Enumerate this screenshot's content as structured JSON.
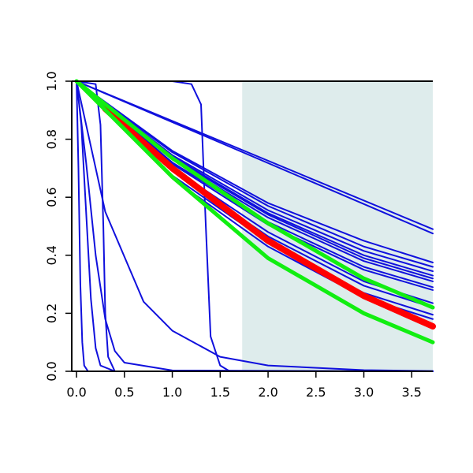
{
  "chart_data": {
    "type": "line",
    "title": "",
    "xlabel": "",
    "ylabel": "",
    "xlim": [
      -0.05,
      3.72
    ],
    "ylim": [
      0,
      1
    ],
    "grid": false,
    "legend": "none",
    "x_ticks": [
      {
        "value": 0.0,
        "label": "0.0"
      },
      {
        "value": 0.5,
        "label": "0.5"
      },
      {
        "value": 1.0,
        "label": "1.0"
      },
      {
        "value": 1.5,
        "label": "1.5"
      },
      {
        "value": 2.0,
        "label": "2.0"
      },
      {
        "value": 2.5,
        "label": "2.5"
      },
      {
        "value": 3.0,
        "label": "3.0"
      },
      {
        "value": 3.5,
        "label": "3.5"
      }
    ],
    "y_ticks": [
      {
        "value": 0.0,
        "label": "0.0"
      },
      {
        "value": 0.2,
        "label": "0.2"
      },
      {
        "value": 0.4,
        "label": "0.4"
      },
      {
        "value": 0.6,
        "label": "0.6"
      },
      {
        "value": 0.8,
        "label": "0.8"
      },
      {
        "value": 1.0,
        "label": "1.0"
      }
    ],
    "shaded_region": {
      "x_start": 1.73,
      "x_end": 3.72,
      "y_start": 0,
      "y_end": 1,
      "color": "#deecec"
    },
    "colors": {
      "blue": "#1010dd",
      "red": "#ff0000",
      "green": "#11ee11",
      "axis": "#000000"
    },
    "series": [
      {
        "color": "#1010dd",
        "width": 2,
        "x": [
          0,
          3.72
        ],
        "y": [
          1.0,
          0.49
        ]
      },
      {
        "color": "#1010dd",
        "width": 2,
        "x": [
          0,
          3.72
        ],
        "y": [
          1.0,
          0.475
        ]
      },
      {
        "color": "#1010dd",
        "width": 2,
        "x": [
          0,
          1.0,
          2.0,
          3.0,
          3.72
        ],
        "y": [
          1.0,
          0.76,
          0.58,
          0.45,
          0.375
        ]
      },
      {
        "color": "#1010dd",
        "width": 2,
        "x": [
          0,
          1.0,
          2.0,
          3.0,
          3.72
        ],
        "y": [
          1.0,
          0.755,
          0.57,
          0.43,
          0.36
        ]
      },
      {
        "color": "#1010dd",
        "width": 2,
        "x": [
          0,
          1.0,
          2.0,
          3.0,
          3.72
        ],
        "y": [
          1.0,
          0.745,
          0.555,
          0.415,
          0.345
        ]
      },
      {
        "color": "#1010dd",
        "width": 2,
        "x": [
          0,
          1.0,
          2.0,
          3.0,
          3.72
        ],
        "y": [
          1.0,
          0.74,
          0.545,
          0.4,
          0.33
        ]
      },
      {
        "color": "#1010dd",
        "width": 2,
        "x": [
          0,
          1.0,
          2.0,
          3.0,
          3.72
        ],
        "y": [
          1.0,
          0.735,
          0.54,
          0.39,
          0.32
        ]
      },
      {
        "color": "#1010dd",
        "width": 2,
        "x": [
          0,
          1.0,
          2.0,
          3.0,
          3.72
        ],
        "y": [
          1.0,
          0.73,
          0.53,
          0.38,
          0.31
        ]
      },
      {
        "color": "#1010dd",
        "width": 2,
        "x": [
          0,
          1.0,
          2.0,
          3.0,
          3.72
        ],
        "y": [
          1.0,
          0.72,
          0.515,
          0.36,
          0.29
        ]
      },
      {
        "color": "#1010dd",
        "width": 2,
        "x": [
          0,
          1.0,
          2.0,
          3.0,
          3.72
        ],
        "y": [
          1.0,
          0.715,
          0.505,
          0.35,
          0.28
        ]
      },
      {
        "color": "#1010dd",
        "width": 2,
        "x": [
          0,
          1.0,
          2.0,
          3.0,
          3.72
        ],
        "y": [
          1.0,
          0.7,
          0.48,
          0.31,
          0.235
        ]
      },
      {
        "color": "#1010dd",
        "width": 2,
        "x": [
          0,
          1.0,
          2.0,
          3.0,
          3.72
        ],
        "y": [
          1.0,
          0.69,
          0.465,
          0.295,
          0.22
        ]
      },
      {
        "color": "#1010dd",
        "width": 2,
        "x": [
          0,
          1.0,
          2.0,
          3.0,
          3.72
        ],
        "y": [
          1.0,
          0.675,
          0.445,
          0.27,
          0.195
        ]
      },
      {
        "color": "#1010dd",
        "width": 2,
        "x": [
          0,
          1.0,
          2.0,
          3.0,
          3.72
        ],
        "y": [
          1.0,
          0.665,
          0.43,
          0.255,
          0.18
        ]
      },
      {
        "color": "#1010dd",
        "width": 2,
        "x": [
          0,
          0.3,
          0.7,
          1.0,
          1.5,
          2.0,
          3.0,
          3.72
        ],
        "y": [
          1.0,
          0.55,
          0.24,
          0.14,
          0.05,
          0.02,
          0.004,
          0.001
        ]
      },
      {
        "color": "#1010dd",
        "width": 2,
        "x": [
          0,
          0.1,
          0.2,
          0.3,
          0.4,
          0.5,
          1.0,
          3.72
        ],
        "y": [
          1.0,
          0.72,
          0.4,
          0.18,
          0.07,
          0.03,
          0.003,
          0.0
        ]
      },
      {
        "color": "#1010dd",
        "width": 2,
        "x": [
          0,
          0.05,
          0.1,
          0.15,
          0.2,
          0.25,
          0.4,
          3.72
        ],
        "y": [
          1.0,
          0.85,
          0.55,
          0.25,
          0.08,
          0.02,
          0.0,
          0.0
        ]
      },
      {
        "color": "#1010dd",
        "width": 2,
        "x": [
          0,
          0.02,
          0.04,
          0.06,
          0.08,
          0.12,
          3.72
        ],
        "y": [
          1.0,
          0.7,
          0.3,
          0.1,
          0.02,
          0.0,
          0.0
        ]
      },
      {
        "color": "#1010dd",
        "width": 2,
        "x": [
          0,
          0.2,
          0.25,
          0.28,
          0.3,
          0.33,
          0.4,
          3.72
        ],
        "y": [
          1.0,
          0.99,
          0.85,
          0.5,
          0.2,
          0.05,
          0.0,
          0.0
        ]
      },
      {
        "color": "#1010dd",
        "width": 2,
        "x": [
          0,
          1.0,
          1.2,
          1.3,
          1.35,
          1.4,
          1.5,
          1.6,
          3.72
        ],
        "y": [
          1.0,
          1.0,
          0.99,
          0.92,
          0.5,
          0.12,
          0.02,
          0.0,
          0.0
        ]
      },
      {
        "color": "#ff0000",
        "width": 8,
        "x": [
          0.3,
          1.0,
          2.0,
          3.0,
          3.72
        ],
        "y": [
          0.905,
          0.7,
          0.45,
          0.26,
          0.155
        ]
      },
      {
        "color": "#11ee11",
        "width": 5,
        "x": [
          0,
          1.0,
          2.0,
          3.0,
          3.72
        ],
        "y": [
          1.0,
          0.735,
          0.51,
          0.32,
          0.22
        ]
      },
      {
        "color": "#11ee11",
        "width": 5,
        "x": [
          0,
          1.0,
          2.0,
          3.0,
          3.72
        ],
        "y": [
          1.0,
          0.67,
          0.39,
          0.2,
          0.1
        ]
      }
    ]
  }
}
